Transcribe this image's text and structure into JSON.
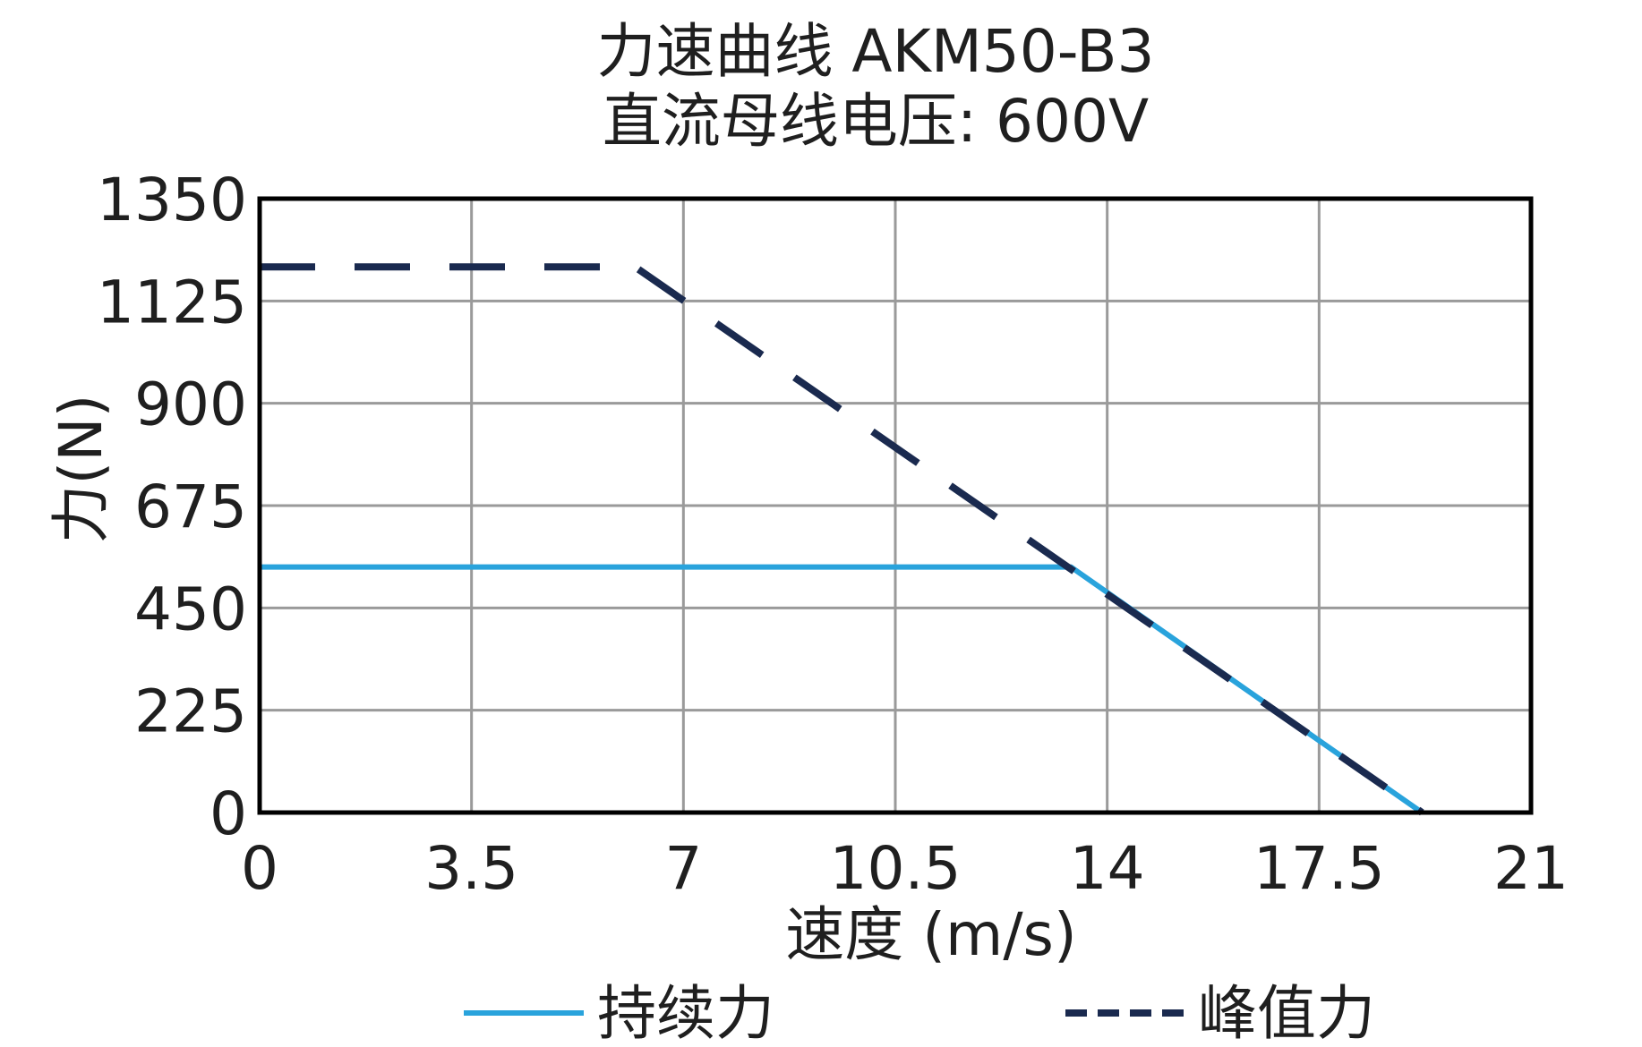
{
  "chart_data": {
    "type": "line",
    "title": "力速曲线 AKM50-B3",
    "subtitle": "直流母线电压: 600V",
    "xlabel": "速度 (m/s)",
    "ylabel": "力(N)",
    "xlim": [
      0,
      21
    ],
    "ylim": [
      0,
      1350
    ],
    "x_ticks": [
      "0",
      "3.5",
      "7",
      "10.5",
      "14",
      "17.5",
      "21"
    ],
    "y_ticks": [
      "0",
      "225",
      "450",
      "675",
      "900",
      "1125",
      "1350"
    ],
    "x_tick_values": [
      0,
      3.5,
      7,
      10.5,
      14,
      17.5,
      21
    ],
    "y_tick_values": [
      0,
      225,
      450,
      675,
      900,
      1125,
      1350
    ],
    "grid": true,
    "legend_position": "bottom",
    "series": [
      {
        "name": "持续力",
        "style": "solid",
        "color": "#29a3dc",
        "points": [
          [
            0,
            540
          ],
          [
            13.4,
            540
          ],
          [
            19.2,
            0
          ]
        ]
      },
      {
        "name": "峰值力",
        "style": "dashed",
        "color": "#1a2a4f",
        "points": [
          [
            0,
            1200
          ],
          [
            6.2,
            1200
          ],
          [
            19.2,
            0
          ]
        ]
      }
    ]
  }
}
